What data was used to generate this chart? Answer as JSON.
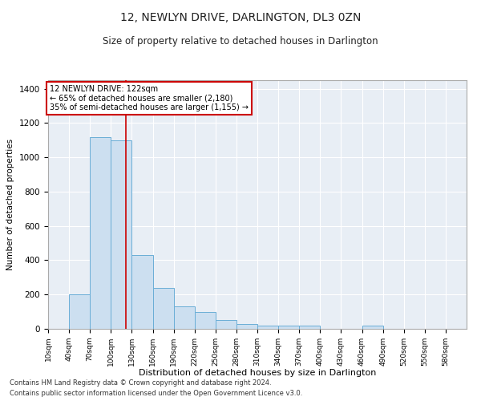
{
  "title": "12, NEWLYN DRIVE, DARLINGTON, DL3 0ZN",
  "subtitle": "Size of property relative to detached houses in Darlington",
  "xlabel": "Distribution of detached houses by size in Darlington",
  "ylabel": "Number of detached properties",
  "bar_color": "#ccdff0",
  "bar_edge_color": "#6aaed6",
  "background_color": "#e8eef5",
  "grid_color": "#ffffff",
  "annotation_box_color": "#cc0000",
  "red_line_x": 122,
  "annotation_text": "12 NEWLYN DRIVE: 122sqm\n← 65% of detached houses are smaller (2,180)\n35% of semi-detached houses are larger (1,155) →",
  "footer_line1": "Contains HM Land Registry data © Crown copyright and database right 2024.",
  "footer_line2": "Contains public sector information licensed under the Open Government Licence v3.0.",
  "bins": [
    10,
    40,
    70,
    100,
    130,
    160,
    190,
    220,
    250,
    280,
    310,
    340,
    370,
    400,
    430,
    460,
    490,
    520,
    550,
    580,
    610
  ],
  "counts": [
    0,
    200,
    1120,
    1100,
    430,
    240,
    130,
    100,
    50,
    30,
    20,
    20,
    20,
    0,
    0,
    20,
    0,
    0,
    0,
    0
  ],
  "ylim": [
    0,
    1450
  ],
  "yticks": [
    0,
    200,
    400,
    600,
    800,
    1000,
    1200,
    1400
  ]
}
